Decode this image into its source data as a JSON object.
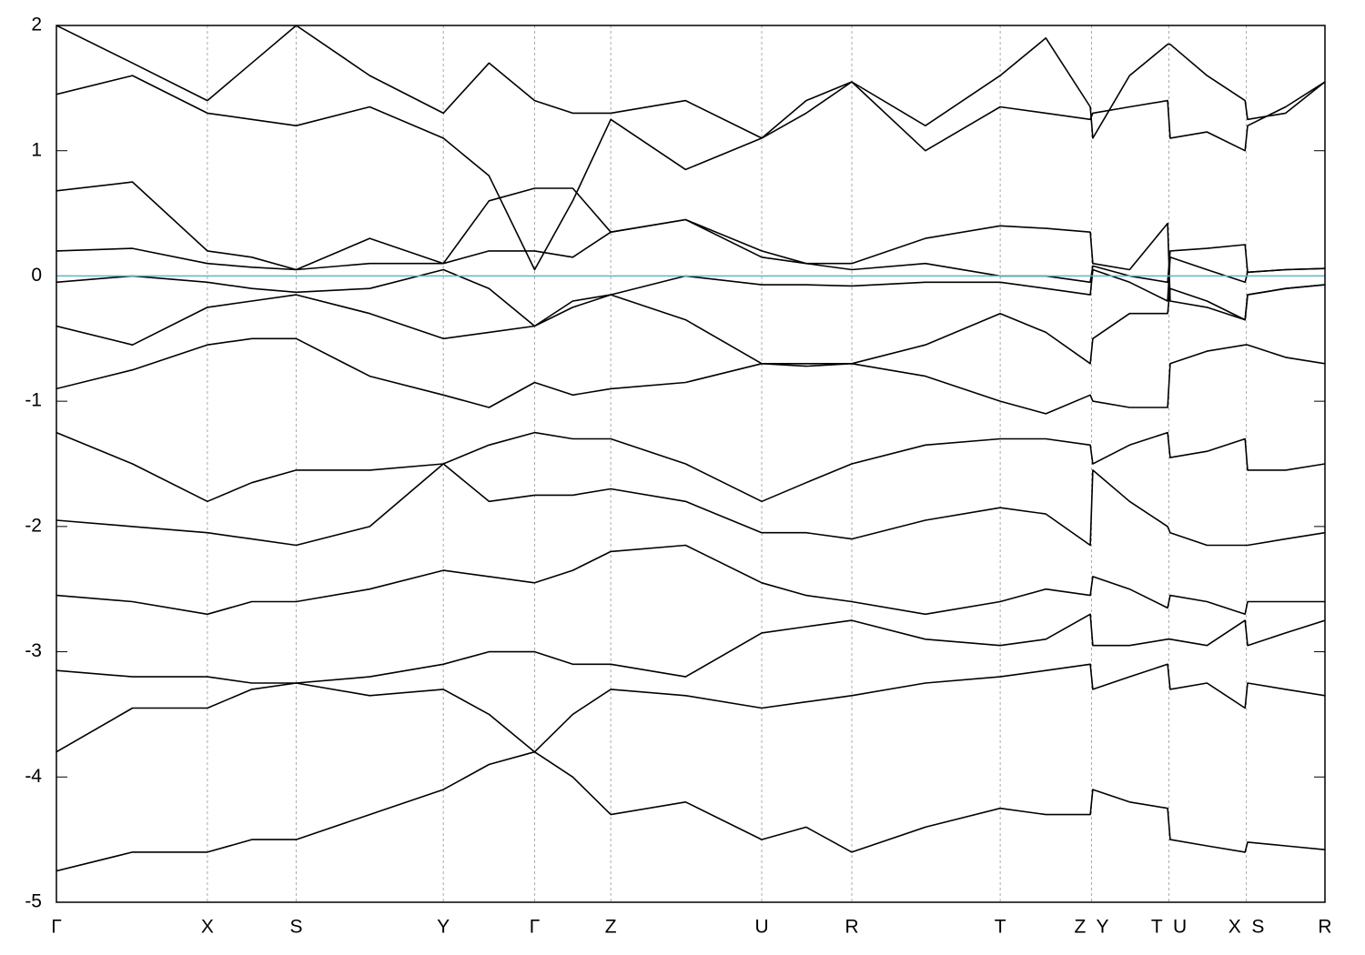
{
  "chart_data": {
    "type": "line",
    "xlim": [
      0,
      1
    ],
    "ylim": [
      -5,
      2
    ],
    "yticks": [
      -5,
      -4,
      -3,
      -2,
      -1,
      0,
      1,
      2
    ],
    "xticks": [
      {
        "value": 0,
        "label": "Γ"
      },
      {
        "value": 0.119,
        "label": "X"
      },
      {
        "value": 0.189,
        "label": "S"
      },
      {
        "value": 0.305,
        "label": "Y"
      },
      {
        "value": 0.377,
        "label": "Γ"
      },
      {
        "value": 0.437,
        "label": "Z"
      },
      {
        "value": 0.556,
        "label": "U"
      },
      {
        "value": 0.627,
        "label": "R"
      },
      {
        "value": 0.744,
        "label": "T"
      },
      {
        "value": 0.816,
        "label": "Z  Y"
      },
      {
        "value": 0.877,
        "label": "T  U"
      },
      {
        "value": 0.938,
        "label": "X  S"
      },
      {
        "value": 1,
        "label": "R"
      }
    ],
    "grid": true,
    "fermi_level": 0,
    "fermi_color": "#5fb6c6",
    "color": "#000000",
    "x": [
      0,
      0.06,
      0.119,
      0.154,
      0.189,
      0.247,
      0.305,
      0.341,
      0.377,
      0.407,
      0.437,
      0.496,
      0.556,
      0.591,
      0.627,
      0.685,
      0.744,
      0.78,
      0.815,
      0.817,
      0.846,
      0.876,
      0.878,
      0.907,
      0.937,
      0.939,
      0.969,
      1
    ],
    "series": [
      {
        "values": [
          -4.75,
          -4.6,
          -4.6,
          -4.5,
          -4.5,
          -4.3,
          -4.1,
          -3.9,
          -3.8,
          -4.0,
          -4.3,
          -4.2,
          -4.5,
          -4.4,
          -4.6,
          -4.4,
          -4.25,
          -4.3,
          -4.3,
          -4.1,
          -4.2,
          -4.25,
          -4.5,
          -4.55,
          -4.6,
          -4.52,
          -4.55,
          -4.58
        ]
      },
      {
        "values": [
          -3.8,
          -3.45,
          -3.45,
          -3.3,
          -3.25,
          -3.35,
          -3.3,
          -3.5,
          -3.8,
          -3.5,
          -3.3,
          -3.35,
          -3.45,
          -3.4,
          -3.35,
          -3.25,
          -3.2,
          -3.15,
          -3.1,
          -3.3,
          -3.2,
          -3.1,
          -3.3,
          -3.25,
          -3.45,
          -3.25,
          -3.3,
          -3.35
        ]
      },
      {
        "values": [
          -3.15,
          -3.2,
          -3.2,
          -3.25,
          -3.25,
          -3.2,
          -3.1,
          -3.0,
          -3.0,
          -3.1,
          -3.1,
          -3.2,
          -2.85,
          -2.8,
          -2.75,
          -2.9,
          -2.95,
          -2.9,
          -2.7,
          -2.95,
          -2.95,
          -2.9,
          -2.9,
          -2.95,
          -2.75,
          -2.95,
          -2.85,
          -2.75
        ]
      },
      {
        "values": [
          -2.55,
          -2.6,
          -2.7,
          -2.6,
          -2.6,
          -2.5,
          -2.35,
          -2.4,
          -2.45,
          -2.35,
          -2.2,
          -2.15,
          -2.45,
          -2.55,
          -2.6,
          -2.7,
          -2.6,
          -2.5,
          -2.55,
          -2.4,
          -2.5,
          -2.65,
          -2.55,
          -2.6,
          -2.7,
          -2.6,
          -2.6,
          -2.6
        ]
      },
      {
        "values": [
          -1.95,
          -2.0,
          -2.05,
          -2.1,
          -2.15,
          -2.0,
          -1.5,
          -1.8,
          -1.75,
          -1.75,
          -1.7,
          -1.8,
          -2.05,
          -2.05,
          -2.1,
          -1.95,
          -1.85,
          -1.9,
          -2.15,
          -1.55,
          -1.8,
          -2.0,
          -2.05,
          -2.15,
          -2.15,
          -2.15,
          -2.1,
          -2.05
        ]
      },
      {
        "values": [
          -1.25,
          -1.5,
          -1.8,
          -1.65,
          -1.55,
          -1.55,
          -1.5,
          -1.35,
          -1.25,
          -1.3,
          -1.3,
          -1.5,
          -1.8,
          -1.65,
          -1.5,
          -1.35,
          -1.3,
          -1.3,
          -1.35,
          -1.5,
          -1.35,
          -1.25,
          -1.45,
          -1.4,
          -1.3,
          -1.55,
          -1.55,
          -1.5
        ]
      },
      {
        "values": [
          -0.9,
          -0.75,
          -0.55,
          -0.5,
          -0.5,
          -0.8,
          -0.95,
          -1.05,
          -0.85,
          -0.95,
          -0.9,
          -0.85,
          -0.7,
          -0.72,
          -0.7,
          -0.8,
          -1.0,
          -1.1,
          -0.95,
          -1.0,
          -1.05,
          -1.05,
          -0.7,
          -0.6,
          -0.55,
          -0.55,
          -0.65,
          -0.7
        ]
      },
      {
        "values": [
          -0.4,
          -0.55,
          -0.25,
          -0.2,
          -0.15,
          -0.3,
          -0.5,
          -0.45,
          -0.4,
          -0.25,
          -0.15,
          -0.35,
          -0.7,
          -0.7,
          -0.7,
          -0.55,
          -0.3,
          -0.45,
          -0.7,
          -0.5,
          -0.3,
          -0.3,
          -0.1,
          -0.2,
          -0.35,
          -0.15,
          -0.1,
          -0.07
        ]
      },
      {
        "values": [
          -0.05,
          0.0,
          -0.05,
          -0.1,
          -0.13,
          -0.1,
          0.05,
          -0.1,
          -0.4,
          -0.2,
          -0.15,
          0.0,
          -0.07,
          -0.07,
          -0.08,
          -0.05,
          -0.05,
          -0.1,
          -0.15,
          0.05,
          -0.05,
          -0.2,
          0.15,
          0.05,
          -0.05,
          0.03,
          0.05,
          0.06
        ]
      },
      {
        "values": [
          0.2,
          0.22,
          0.1,
          0.07,
          0.05,
          0.1,
          0.1,
          0.2,
          0.2,
          0.15,
          0.35,
          0.45,
          0.2,
          0.1,
          0.05,
          0.1,
          0.0,
          0.0,
          -0.05,
          0.08,
          0.0,
          -0.05,
          0.2,
          0.22,
          0.25,
          0.03,
          0.05,
          0.06
        ]
      },
      {
        "values": [
          0.68,
          0.75,
          0.2,
          0.15,
          0.05,
          0.3,
          0.1,
          0.6,
          0.7,
          0.7,
          0.35,
          0.45,
          0.15,
          0.1,
          0.1,
          0.3,
          0.4,
          0.38,
          0.35,
          0.1,
          0.05,
          0.42,
          -0.2,
          -0.25,
          -0.35,
          -0.15,
          -0.1,
          -0.07
        ]
      },
      {
        "values": [
          1.45,
          1.6,
          1.3,
          1.25,
          1.2,
          1.35,
          1.1,
          0.8,
          0.05,
          0.6,
          1.25,
          0.85,
          1.1,
          1.4,
          1.55,
          1.0,
          1.35,
          1.3,
          1.25,
          1.3,
          1.35,
          1.4,
          1.1,
          1.15,
          1.0,
          1.2,
          1.35,
          1.55
        ]
      },
      {
        "values": [
          2.0,
          1.7,
          1.4,
          1.7,
          2.0,
          1.6,
          1.3,
          1.7,
          1.4,
          1.3,
          1.3,
          1.4,
          1.1,
          1.3,
          1.55,
          1.2,
          1.6,
          1.9,
          1.35,
          1.1,
          1.6,
          1.85,
          1.85,
          1.6,
          1.4,
          1.25,
          1.3,
          1.55
        ]
      }
    ]
  }
}
